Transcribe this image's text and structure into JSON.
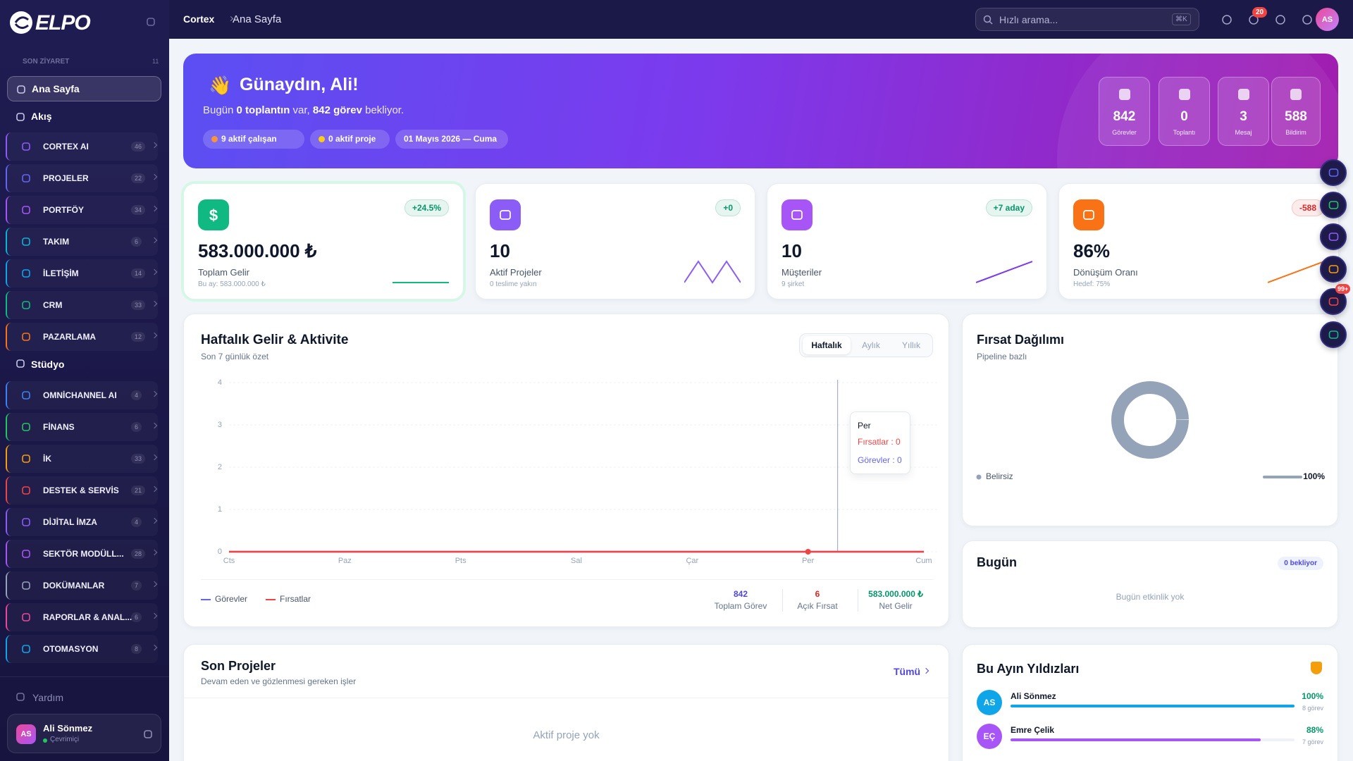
{
  "sidebar": {
    "brand": "ELPO",
    "recent": "SON ZİYARET",
    "recent_count": 11,
    "pinned": [
      "Ana Sayfa",
      "Akış"
    ],
    "groups1": [
      {
        "label": "CORTEX AI",
        "count": 46,
        "color": "#8b5cf6"
      },
      {
        "label": "PROJELER",
        "count": 22,
        "color": "#6366f1"
      },
      {
        "label": "PORTFÖY",
        "count": 34,
        "color": "#a855f7"
      },
      {
        "label": "TAKIM",
        "count": 6,
        "color": "#06b6d4"
      },
      {
        "label": "İLETİŞİM",
        "count": 14,
        "color": "#0ea5e9"
      },
      {
        "label": "CRM",
        "count": 33,
        "color": "#10b981"
      },
      {
        "label": "PAZARLAMA",
        "count": 12,
        "color": "#f97316"
      }
    ],
    "studio": "Stüdyo",
    "groups2": [
      {
        "label": "OMNİCHANNEL AI",
        "count": 4,
        "color": "#3b82f6"
      },
      {
        "label": "FİNANS",
        "count": 6,
        "color": "#22c55e"
      },
      {
        "label": "İK",
        "count": 33,
        "color": "#f59e0b"
      },
      {
        "label": "DESTEK & SERVİS",
        "count": 21,
        "color": "#ef4444"
      },
      {
        "label": "DİJİTAL İMZA",
        "count": 4,
        "color": "#8b5cf6"
      },
      {
        "label": "SEKTÖR MODÜLL...",
        "count": 28,
        "color": "#a855f7"
      },
      {
        "label": "DOKÜMANLAR",
        "count": 7,
        "color": "#94a3b8"
      },
      {
        "label": "RAPORLAR & ANAL...",
        "count": 6,
        "color": "#ec4899"
      },
      {
        "label": "OTOMASYON",
        "count": 8,
        "color": "#0ea5e9"
      }
    ],
    "help": "Yardım",
    "user": {
      "initials": "AS",
      "name": "Ali Sönmez",
      "status": "Çevrimiçi"
    }
  },
  "topbar": {
    "breadcrumb": [
      "Cortex",
      "Ana Sayfa"
    ],
    "search": "Hızlı arama...",
    "shortcut": "⌘K",
    "notifications": 20,
    "avatar": "AS"
  },
  "hero": {
    "wave": "👋",
    "greeting": "Günaydın, Ali!",
    "subtitle": [
      {
        "text": "Bugün "
      },
      {
        "text": "0 toplantın",
        "bold": true
      },
      {
        "text": " var, "
      },
      {
        "text": "842 görev",
        "bold": true
      },
      {
        "text": " bekliyor."
      }
    ],
    "chips": [
      "9 aktif çalışan",
      "0 aktif proje",
      "01 Mayıs 2026 — Cuma"
    ],
    "stats": [
      {
        "value": 842,
        "label": "Görevler"
      },
      {
        "value": 0,
        "label": "Toplantı"
      },
      {
        "value": 3,
        "label": "Mesaj"
      },
      {
        "value": 588,
        "label": "Bildirim"
      }
    ]
  },
  "kpis": [
    {
      "icon": "$",
      "value": "583.000.000 ₺",
      "label": "Toplam Gelir",
      "sub": "Bu ay: 583.000.000 ₺",
      "delta": "+24.5%",
      "delta_color": "#059669",
      "color": "#10b981",
      "trend": [
        1,
        1,
        1,
        1,
        1,
        1,
        1
      ]
    },
    {
      "value": "10",
      "label": "Aktif Projeler",
      "sub": "0 teslime yakın",
      "delta": "+0",
      "delta_color": "#059669",
      "color": "#8b5cf6",
      "trend": [
        0,
        1,
        0,
        1,
        0
      ]
    },
    {
      "value": "10",
      "label": "Müşteriler",
      "sub": "9 şirket",
      "delta": "+7 aday",
      "delta_color": "#059669",
      "color": "#a855f7",
      "trend": [
        0,
        1
      ]
    },
    {
      "value": "86%",
      "label": "Dönüşüm Oranı",
      "sub": "Hedef: 75%",
      "delta": "-588",
      "delta_color": "#dc2626",
      "color": "#f97316",
      "trend": [
        0,
        1
      ]
    }
  ],
  "chart_data": [
    {
      "type": "line",
      "title": "Haftalık Gelir & Aktivite",
      "subtitle": "Son 7 günlük özet",
      "tabs": [
        "Haftalık",
        "Aylık",
        "Yıllık"
      ],
      "categories": [
        "Cts",
        "Paz",
        "Pts",
        "Sal",
        "Çar",
        "Per",
        "Cum"
      ],
      "series": [
        {
          "name": "Görevler",
          "color": "#6366f1",
          "values": [
            0,
            0,
            0,
            0,
            0,
            0,
            0
          ]
        },
        {
          "name": "Fırsatlar",
          "color": "#ef4444",
          "values": [
            0,
            0,
            0,
            0,
            0,
            0,
            0
          ]
        }
      ],
      "ylim": [
        0,
        4
      ],
      "yticks": [
        0,
        1,
        2,
        3,
        4
      ],
      "grid": true,
      "tooltip": {
        "category": "Per",
        "lines": [
          "Fırsatlar : 0",
          "Görevler : 0"
        ]
      },
      "totals": [
        {
          "value": "842",
          "label": "Toplam Görev",
          "color": "#4f46e5"
        },
        {
          "value": "6",
          "label": "Açık Fırsat",
          "color": "#dc2626"
        },
        {
          "value": "583.000.000 ₺",
          "label": "Net Gelir",
          "color": "#059669"
        }
      ]
    },
    {
      "type": "donut",
      "title": "Fırsat Dağılımı",
      "subtitle": "Pipeline bazlı",
      "categories": [
        "Belirsiz"
      ],
      "values": [
        100
      ],
      "value_labels": [
        "100%"
      ],
      "colors": [
        "#94a3b8"
      ]
    }
  ],
  "today": {
    "title": "Bugün",
    "badge": "0 bekliyor",
    "empty": "Bugün etkinlik yok"
  },
  "projects": {
    "title": "Son Projeler",
    "subtitle": "Devam eden ve gözlenmesi gereken işler",
    "link": "Tümü",
    "empty": "Aktif proje yok"
  },
  "stars": {
    "title": "Bu Ayın Yıldızları",
    "people": [
      {
        "initials": "AS",
        "name": "Ali Sönmez",
        "percent": 100,
        "percent_label": "100%",
        "tasks": "8 görev",
        "color": "#0ea5e9"
      },
      {
        "initials": "EÇ",
        "name": "Emre Çelik",
        "percent": 88,
        "percent_label": "88%",
        "tasks": "7 görev",
        "color": "#a855f7"
      }
    ]
  },
  "floating_badge": "99+"
}
